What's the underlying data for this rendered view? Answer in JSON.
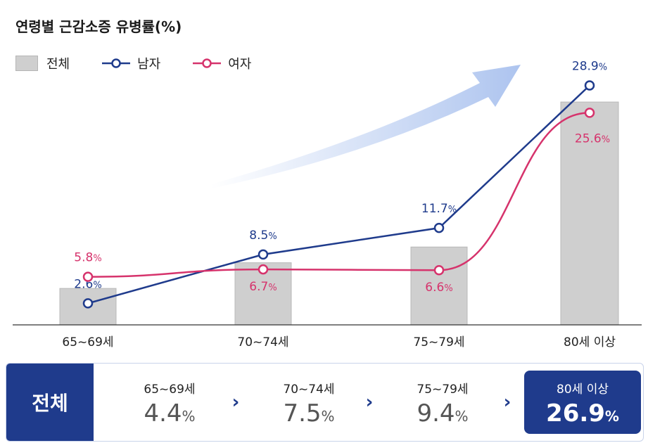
{
  "colors": {
    "total": "#cfcfcf",
    "male": "#1f3b8c",
    "female": "#d6336c",
    "accent_arrow": "#a9c1ee"
  },
  "chart_data": {
    "type": "bar",
    "title": "연령별 근감소증 유병률(%)",
    "categories": [
      "65~69세",
      "70~74세",
      "75~79세",
      "80세 이상"
    ],
    "ylim": [
      0,
      32
    ],
    "series": [
      {
        "name": "전체",
        "type": "bar",
        "values": [
          4.4,
          7.5,
          9.4,
          26.9
        ]
      },
      {
        "name": "남자",
        "type": "line",
        "values": [
          2.6,
          8.5,
          11.7,
          28.9
        ],
        "labels": [
          "2.6",
          "8.5",
          "11.7",
          "28.9"
        ]
      },
      {
        "name": "여자",
        "type": "line",
        "values": [
          5.8,
          6.7,
          6.6,
          25.6
        ],
        "labels": [
          "5.8",
          "6.7",
          "6.6",
          "25.6"
        ]
      }
    ],
    "unit": "%",
    "legend": "top-left",
    "grid": false
  },
  "summary": {
    "header": "전체",
    "items": [
      {
        "category": "65~69세",
        "value": "4.4",
        "unit": "%"
      },
      {
        "category": "70~74세",
        "value": "7.5",
        "unit": "%"
      },
      {
        "category": "75~79세",
        "value": "9.4",
        "unit": "%"
      },
      {
        "category": "80세 이상",
        "value": "26.9",
        "unit": "%"
      }
    ],
    "arrow_glyph": "›"
  }
}
